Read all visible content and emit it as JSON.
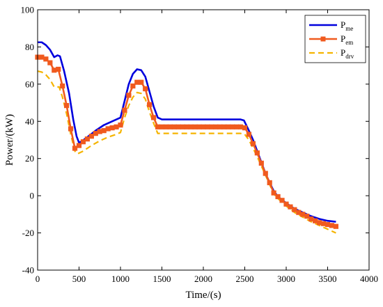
{
  "chart_data": {
    "type": "line",
    "title": "",
    "xlabel": "Time/(s)",
    "ylabel": "Power/(kW)",
    "xlim": [
      0,
      4000
    ],
    "ylim": [
      -40,
      100
    ],
    "xticks": [
      0,
      500,
      1000,
      1500,
      2000,
      2500,
      3000,
      3500,
      4000
    ],
    "yticks": [
      -40,
      -20,
      0,
      20,
      40,
      60,
      80,
      100
    ],
    "grid": false,
    "legend_position": "top-right",
    "series": [
      {
        "name": "P",
        "subscript": "me",
        "color": "#0000dd",
        "style": "solid",
        "marker": "none",
        "points": [
          [
            0,
            82.5
          ],
          [
            50,
            82.5
          ],
          [
            100,
            81
          ],
          [
            150,
            78.5
          ],
          [
            200,
            74.5
          ],
          [
            240,
            75.5
          ],
          [
            270,
            75
          ],
          [
            320,
            67
          ],
          [
            380,
            55
          ],
          [
            430,
            41
          ],
          [
            470,
            32
          ],
          [
            500,
            28.5
          ],
          [
            540,
            29.5
          ],
          [
            600,
            31.5
          ],
          [
            700,
            35
          ],
          [
            800,
            38
          ],
          [
            900,
            40
          ],
          [
            1000,
            42
          ],
          [
            1050,
            51
          ],
          [
            1100,
            60
          ],
          [
            1150,
            65.5
          ],
          [
            1200,
            68
          ],
          [
            1250,
            67.5
          ],
          [
            1300,
            64
          ],
          [
            1350,
            56
          ],
          [
            1400,
            48
          ],
          [
            1450,
            42
          ],
          [
            1500,
            41
          ],
          [
            2000,
            41
          ],
          [
            2450,
            41
          ],
          [
            2490,
            40.5
          ],
          [
            2550,
            35
          ],
          [
            2600,
            30
          ],
          [
            2650,
            24
          ],
          [
            2700,
            18
          ],
          [
            2750,
            12
          ],
          [
            2800,
            7
          ],
          [
            2850,
            2.5
          ],
          [
            2900,
            -0.5
          ],
          [
            3000,
            -4
          ],
          [
            3100,
            -7
          ],
          [
            3200,
            -9
          ],
          [
            3300,
            -11
          ],
          [
            3400,
            -12.5
          ],
          [
            3500,
            -13.5
          ],
          [
            3600,
            -14
          ]
        ]
      },
      {
        "name": "P",
        "subscript": "em",
        "color": "#f05a1e",
        "style": "solid",
        "marker": "square",
        "points": [
          [
            0,
            74.5
          ],
          [
            50,
            74.5
          ],
          [
            100,
            73.5
          ],
          [
            150,
            71.5
          ],
          [
            200,
            67.5
          ],
          [
            250,
            68
          ],
          [
            300,
            59
          ],
          [
            350,
            48.5
          ],
          [
            400,
            36
          ],
          [
            450,
            25.5
          ],
          [
            500,
            27
          ],
          [
            550,
            29
          ],
          [
            600,
            30.5
          ],
          [
            650,
            32
          ],
          [
            700,
            33.5
          ],
          [
            750,
            34.5
          ],
          [
            800,
            35
          ],
          [
            850,
            36
          ],
          [
            900,
            36.5
          ],
          [
            950,
            37
          ],
          [
            1000,
            38
          ],
          [
            1050,
            46
          ],
          [
            1100,
            54
          ],
          [
            1150,
            59
          ],
          [
            1200,
            61
          ],
          [
            1250,
            61
          ],
          [
            1300,
            57.5
          ],
          [
            1350,
            49
          ],
          [
            1400,
            42
          ],
          [
            1450,
            37
          ],
          [
            1500,
            37
          ],
          [
            1550,
            37
          ],
          [
            1600,
            37
          ],
          [
            1650,
            37
          ],
          [
            1700,
            37
          ],
          [
            1750,
            37
          ],
          [
            1800,
            37
          ],
          [
            1850,
            37
          ],
          [
            1900,
            37
          ],
          [
            1950,
            37
          ],
          [
            2000,
            37
          ],
          [
            2050,
            37
          ],
          [
            2100,
            37
          ],
          [
            2150,
            37
          ],
          [
            2200,
            37
          ],
          [
            2250,
            37
          ],
          [
            2300,
            37
          ],
          [
            2350,
            37
          ],
          [
            2400,
            37
          ],
          [
            2450,
            37
          ],
          [
            2500,
            36.5
          ],
          [
            2550,
            33
          ],
          [
            2600,
            28
          ],
          [
            2650,
            23
          ],
          [
            2700,
            17.5
          ],
          [
            2750,
            12
          ],
          [
            2800,
            7
          ],
          [
            2850,
            1.5
          ],
          [
            2900,
            -0.5
          ],
          [
            2950,
            -2.5
          ],
          [
            3000,
            -4.5
          ],
          [
            3050,
            -6
          ],
          [
            3100,
            -7.5
          ],
          [
            3150,
            -9
          ],
          [
            3200,
            -10
          ],
          [
            3250,
            -11
          ],
          [
            3300,
            -12.5
          ],
          [
            3350,
            -13.5
          ],
          [
            3400,
            -14.5
          ],
          [
            3450,
            -15
          ],
          [
            3500,
            -15.5
          ],
          [
            3550,
            -16
          ],
          [
            3600,
            -16.5
          ]
        ]
      },
      {
        "name": "P",
        "subscript": "drv",
        "color": "#f5b400",
        "style": "dashed",
        "marker": "none",
        "points": [
          [
            0,
            67
          ],
          [
            50,
            66.5
          ],
          [
            100,
            65
          ],
          [
            150,
            62.5
          ],
          [
            200,
            58.5
          ],
          [
            260,
            58.5
          ],
          [
            300,
            53
          ],
          [
            350,
            44
          ],
          [
            400,
            33
          ],
          [
            450,
            24
          ],
          [
            480,
            22.5
          ],
          [
            550,
            24
          ],
          [
            650,
            27
          ],
          [
            750,
            29.5
          ],
          [
            850,
            31.5
          ],
          [
            950,
            33
          ],
          [
            1000,
            34
          ],
          [
            1050,
            42
          ],
          [
            1100,
            48.5
          ],
          [
            1150,
            53
          ],
          [
            1200,
            55.5
          ],
          [
            1250,
            55
          ],
          [
            1300,
            52
          ],
          [
            1350,
            45
          ],
          [
            1400,
            39
          ],
          [
            1450,
            33.5
          ],
          [
            1500,
            33.5
          ],
          [
            2000,
            33.5
          ],
          [
            2450,
            33.5
          ],
          [
            2500,
            33
          ],
          [
            2550,
            30
          ],
          [
            2600,
            25.5
          ],
          [
            2650,
            21
          ],
          [
            2700,
            16
          ],
          [
            2750,
            11
          ],
          [
            2800,
            6
          ],
          [
            2850,
            1
          ],
          [
            2900,
            -1.5
          ],
          [
            3000,
            -5.5
          ],
          [
            3100,
            -9
          ],
          [
            3200,
            -11.5
          ],
          [
            3300,
            -14
          ],
          [
            3400,
            -16
          ],
          [
            3500,
            -18
          ],
          [
            3600,
            -20
          ]
        ]
      }
    ]
  }
}
